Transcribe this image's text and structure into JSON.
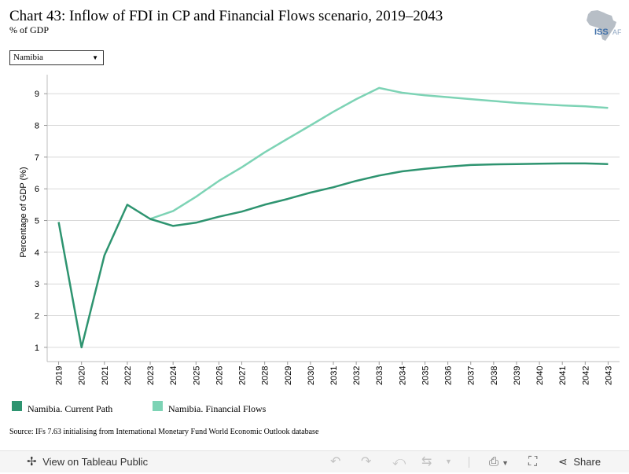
{
  "header": {
    "title": "Chart 43: Inflow of FDI in CP and Financial Flows scenario, 2019–2043",
    "subtitle": "% of GDP",
    "logo_text": "ISS AF"
  },
  "filter": {
    "selected": "Namibia"
  },
  "colors": {
    "current_path": "#2e9470",
    "financial_flows": "#7dd3b5",
    "grid": "#d9d9d9",
    "toolbar_bg": "#f5f5f5"
  },
  "chart_data": {
    "type": "line",
    "title": "",
    "xlabel": "",
    "ylabel": "Percentage of GDP (%)",
    "ylim": [
      0.55,
      9.6
    ],
    "yticks": [
      "1",
      "2",
      "3",
      "4",
      "5",
      "6",
      "7",
      "8",
      "9"
    ],
    "grid": true,
    "legend": "bottom",
    "x": [
      "2019",
      "2020",
      "2021",
      "2022",
      "2023",
      "2024",
      "2025",
      "2026",
      "2027",
      "2028",
      "2029",
      "2030",
      "2031",
      "2032",
      "2033",
      "2034",
      "2035",
      "2036",
      "2037",
      "2038",
      "2039",
      "2040",
      "2041",
      "2042",
      "2043"
    ],
    "series": [
      {
        "name": "Namibia. Current Path",
        "values": [
          4.95,
          1.0,
          3.9,
          5.5,
          5.05,
          4.83,
          4.93,
          5.12,
          5.28,
          5.5,
          5.68,
          5.88,
          6.05,
          6.25,
          6.42,
          6.55,
          6.63,
          6.7,
          6.75,
          6.77,
          6.78,
          6.79,
          6.8,
          6.8,
          6.78
        ]
      },
      {
        "name": "Namibia. Financial Flows",
        "values": [
          null,
          null,
          null,
          null,
          5.05,
          5.3,
          5.75,
          6.25,
          6.68,
          7.15,
          7.58,
          8.0,
          8.43,
          8.83,
          9.18,
          9.03,
          8.95,
          8.89,
          8.83,
          8.77,
          8.71,
          8.67,
          8.63,
          8.6,
          8.55
        ]
      }
    ]
  },
  "source": "Source: IFs 7.63 initialising from International Monetary Fund World Economic Outlook database",
  "toolbar": {
    "view_label": "View on Tableau Public",
    "share_label": "Share",
    "icons": [
      "tableau-icon",
      "undo-icon",
      "redo-icon",
      "revert-icon",
      "refresh-icon",
      "download-icon",
      "fullscreen-icon",
      "share-icon"
    ]
  }
}
